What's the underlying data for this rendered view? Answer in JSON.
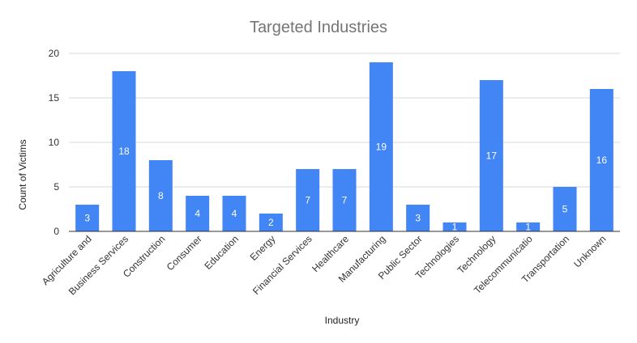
{
  "chart_data": {
    "type": "bar",
    "title": "Targeted Industries",
    "xlabel": "Industry",
    "ylabel": "Count of Victims",
    "ylim": [
      0,
      20
    ],
    "yticks": [
      0,
      5,
      10,
      15,
      20
    ],
    "grid": true,
    "legend": "none",
    "bar_color": "#4285f4",
    "categories": [
      "Agriculture and",
      "Business Services",
      "Construction",
      "Consumer",
      "Education",
      "Energy",
      "Financial Services",
      "Healthcare",
      "Manufacturing",
      "Public Sector",
      "Technologies",
      "Technology",
      "Telecommunicatio",
      "Transportation",
      "Unknown"
    ],
    "values": [
      3,
      18,
      8,
      4,
      4,
      2,
      7,
      7,
      19,
      3,
      1,
      17,
      1,
      5,
      16
    ]
  }
}
